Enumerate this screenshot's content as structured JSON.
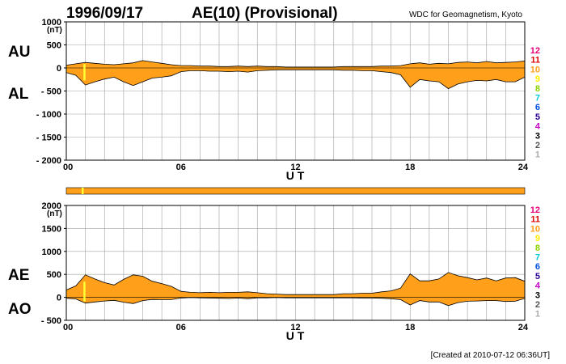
{
  "header": {
    "date": "1996/09/17",
    "title": "AE(10) (Provisional)",
    "source": "WDC for Geomagnetism, Kyoto"
  },
  "footer": {
    "created": "[Created at 2010-07-12 06:36UT]"
  },
  "colors": {
    "fill": "#ff9f1a",
    "marker": "#ffff33",
    "grid": "#a0a0a0",
    "axis": "#000000"
  },
  "stations": {
    "labels": [
      "12",
      "11",
      "10",
      "9",
      "8",
      "7",
      "6",
      "5",
      "4",
      "3",
      "2",
      "1"
    ],
    "colors": [
      "#e8007a",
      "#e00000",
      "#ff9f1a",
      "#ffee00",
      "#8cd100",
      "#00c8d8",
      "#0050e0",
      "#2a0098",
      "#c800c8",
      "#000000",
      "#555555",
      "#aaaaaa"
    ]
  },
  "chart_data": [
    {
      "type": "area",
      "panel": "AU/AL",
      "labels": {
        "upper": "AU",
        "lower": "AL"
      },
      "unit": "(nT)",
      "xlabel": "U T",
      "xlim": [
        0,
        24
      ],
      "ylim": [
        -2000,
        1000
      ],
      "x_ticks": [
        "00",
        "06",
        "12",
        "18",
        "24"
      ],
      "y_ticks": [
        "1000",
        "500",
        "0",
        "- 500",
        "- 1000",
        "- 1500",
        "- 2000"
      ],
      "grid": true,
      "marker_hour": 0.95,
      "x": [
        0,
        0.5,
        1,
        1.5,
        2,
        2.5,
        3,
        3.5,
        4,
        4.5,
        5,
        5.5,
        6,
        6.5,
        7,
        7.5,
        8,
        8.5,
        9,
        9.5,
        10,
        10.5,
        11,
        11.5,
        12,
        12.5,
        13,
        13.5,
        14,
        14.5,
        15,
        15.5,
        16,
        16.5,
        17,
        17.5,
        18,
        18.5,
        19,
        19.5,
        20,
        20.5,
        21,
        21.5,
        22,
        22.5,
        23,
        23.5,
        24
      ],
      "series": [
        {
          "name": "AU",
          "values": [
            60,
            90,
            120,
            100,
            80,
            70,
            90,
            110,
            160,
            130,
            100,
            70,
            50,
            50,
            40,
            40,
            30,
            30,
            40,
            30,
            40,
            30,
            30,
            20,
            20,
            20,
            20,
            20,
            20,
            30,
            30,
            30,
            30,
            40,
            40,
            50,
            90,
            110,
            80,
            100,
            90,
            120,
            130,
            110,
            140,
            110,
            120,
            130,
            150
          ]
        },
        {
          "name": "AL",
          "values": [
            -100,
            -160,
            -370,
            -300,
            -240,
            -200,
            -300,
            -380,
            -300,
            -220,
            -200,
            -170,
            -80,
            -60,
            -60,
            -70,
            -70,
            -80,
            -70,
            -90,
            -60,
            -50,
            -40,
            -40,
            -40,
            -40,
            -40,
            -40,
            -40,
            -50,
            -50,
            -60,
            -60,
            -80,
            -100,
            -150,
            -420,
            -250,
            -280,
            -300,
            -450,
            -350,
            -300,
            -270,
            -280,
            -250,
            -300,
            -300,
            -200
          ]
        }
      ]
    },
    {
      "type": "area",
      "panel": "AE/AO",
      "labels": {
        "upper": "AE",
        "lower": "AO"
      },
      "unit": "(nT)",
      "xlabel": "U T",
      "xlim": [
        0,
        24
      ],
      "ylim": [
        -500,
        2000
      ],
      "x_ticks": [
        "00",
        "06",
        "12",
        "18",
        "24"
      ],
      "y_ticks": [
        "2000",
        "1500",
        "1000",
        "500",
        "0",
        "- 500"
      ],
      "grid": true,
      "marker_hour": 0.95,
      "x": [
        0,
        0.5,
        1,
        1.5,
        2,
        2.5,
        3,
        3.5,
        4,
        4.5,
        5,
        5.5,
        6,
        6.5,
        7,
        7.5,
        8,
        8.5,
        9,
        9.5,
        10,
        10.5,
        11,
        11.5,
        12,
        12.5,
        13,
        13.5,
        14,
        14.5,
        15,
        15.5,
        16,
        16.5,
        17,
        17.5,
        18,
        18.5,
        19,
        19.5,
        20,
        20.5,
        21,
        21.5,
        22,
        22.5,
        23,
        23.5,
        24
      ],
      "series": [
        {
          "name": "AE",
          "values": [
            160,
            250,
            490,
            400,
            320,
            270,
            390,
            490,
            460,
            350,
            300,
            240,
            130,
            110,
            100,
            110,
            100,
            110,
            110,
            120,
            100,
            80,
            70,
            60,
            60,
            60,
            60,
            60,
            60,
            80,
            80,
            90,
            90,
            120,
            140,
            200,
            510,
            360,
            360,
            400,
            540,
            470,
            430,
            380,
            420,
            360,
            420,
            430,
            350
          ]
        },
        {
          "name": "AO",
          "values": [
            -20,
            -35,
            -125,
            -100,
            -80,
            -65,
            -105,
            -135,
            -70,
            -45,
            -50,
            -50,
            -15,
            -5,
            -10,
            -15,
            -20,
            -25,
            -15,
            -30,
            -10,
            -10,
            -5,
            -10,
            -10,
            -10,
            -10,
            -10,
            -10,
            -10,
            -10,
            -15,
            -15,
            -20,
            -30,
            -50,
            -165,
            -70,
            -100,
            -100,
            -180,
            -115,
            -85,
            -80,
            -70,
            -70,
            -90,
            -85,
            -25
          ]
        }
      ]
    }
  ]
}
